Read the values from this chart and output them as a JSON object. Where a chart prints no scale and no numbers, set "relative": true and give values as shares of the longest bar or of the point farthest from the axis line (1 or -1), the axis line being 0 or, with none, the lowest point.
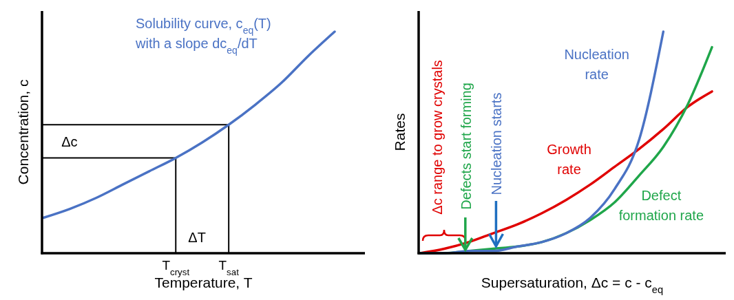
{
  "chart_data": [
    {
      "type": "line",
      "relative": true,
      "xlabel": "Temperature, T",
      "ylabel": "Concentration, c",
      "categories": [
        null,
        null,
        null,
        null,
        null,
        "T$_{cryst}$",
        null,
        "T$_{sat}$",
        null,
        null,
        null,
        null
      ],
      "series": [
        {
          "name": "Solubility curve, c$_{eq}$(T)\nwith a slope dc$_{eq}$/dT",
          "color": "#4a72c4",
          "values": [
            0.16,
            0.2,
            0.25,
            0.31,
            0.37,
            0.43,
            0.5,
            0.58,
            0.67,
            0.77,
            0.89,
            1.0
          ]
        }
      ],
      "ref_lines": [
        {
          "axis": "x",
          "value": "T$_{cryst}$"
        },
        {
          "axis": "x",
          "value": "T$_{sat}$"
        },
        {
          "axis": "y",
          "value": 0.43
        },
        {
          "axis": "y",
          "value": 0.58
        }
      ],
      "annotations": [
        "Δc",
        "ΔT"
      ]
    },
    {
      "type": "line",
      "relative": true,
      "xlabel": "Supersaturation, Δc = c - c$_{eq}$",
      "ylabel": "Rates",
      "categories": [
        null,
        null,
        null,
        null,
        null,
        null,
        null,
        null,
        null,
        null,
        null,
        null,
        null
      ],
      "series": [
        {
          "name": "Growth\nrate",
          "color": "#e00000",
          "values": [
            0,
            0.02,
            0.05,
            0.09,
            0.13,
            0.18,
            0.24,
            0.31,
            0.39,
            0.47,
            0.56,
            0.66,
            0.73
          ]
        },
        {
          "name": "Defect\nformation rate",
          "color": "#1fa64a",
          "values": [
            0,
            0,
            0.01,
            0.02,
            0.03,
            0.05,
            0.09,
            0.15,
            0.23,
            0.35,
            0.48,
            0.67,
            0.93
          ]
        },
        {
          "name": "Nucleation\nrate",
          "color": "#4a72c4",
          "values": [
            0,
            0,
            0.01,
            0.01,
            0.03,
            0.05,
            0.09,
            0.16,
            0.29,
            0.51,
            1.0,
            null,
            null
          ]
        }
      ],
      "annotations": [
        "Δc range to grow crystals",
        "Defects start  forming",
        "Nucleation starts"
      ]
    }
  ]
}
